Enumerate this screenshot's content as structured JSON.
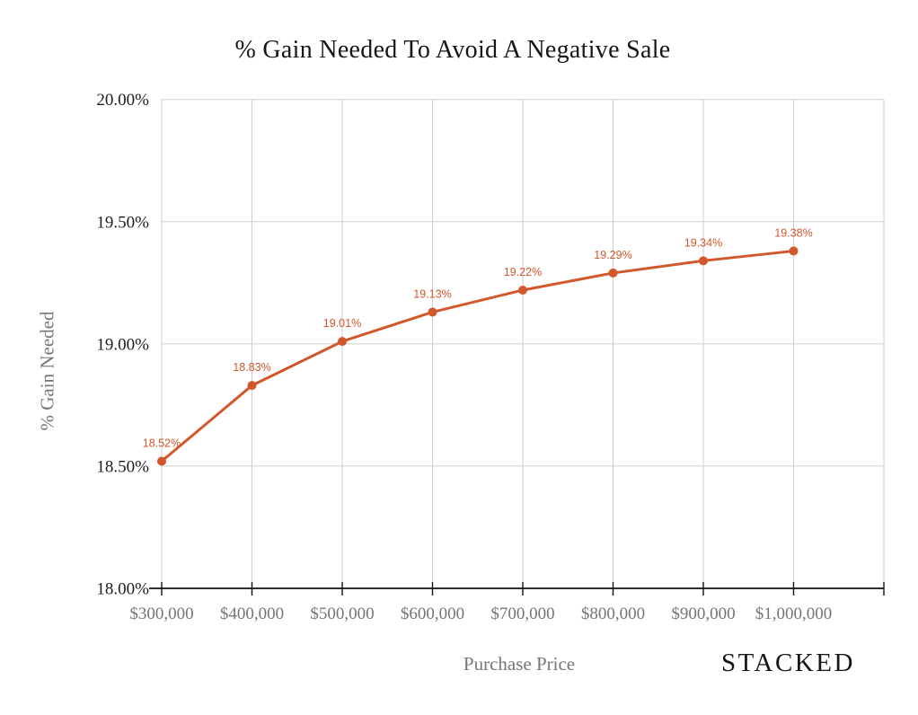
{
  "watermark": {
    "text": "STACKED"
  },
  "chart_data": {
    "type": "line",
    "title": "% Gain Needed To Avoid A Negative Sale",
    "xlabel": "Purchase Price",
    "ylabel": "% Gain Needed",
    "categories": [
      "$300,000",
      "$400,000",
      "$500,000",
      "$600,000",
      "$700,000",
      "$800,000",
      "$900,000",
      "$1,000,000"
    ],
    "values": [
      18.52,
      18.83,
      19.01,
      19.13,
      19.22,
      19.29,
      19.34,
      19.38
    ],
    "point_labels": [
      "18.52%",
      "18.83%",
      "19.01%",
      "19.13%",
      "19.22%",
      "19.29%",
      "19.34%",
      "19.38%"
    ],
    "y_tick_values": [
      18.0,
      18.5,
      19.0,
      19.5,
      20.0
    ],
    "y_tick_labels": [
      "18.00%",
      "18.50%",
      "19.00%",
      "19.50%",
      "20.00%"
    ],
    "ylim": [
      18.0,
      20.0
    ],
    "grid": true,
    "legend": "none",
    "marker": "circle",
    "line_color": "#d2572b"
  },
  "colors": {
    "accent": "#d2572b",
    "grid": "#cdcdcd",
    "axis": "#111111",
    "y_tick_text": "#1c1c1c",
    "muted_text": "#757575",
    "background": "#ffffff"
  }
}
